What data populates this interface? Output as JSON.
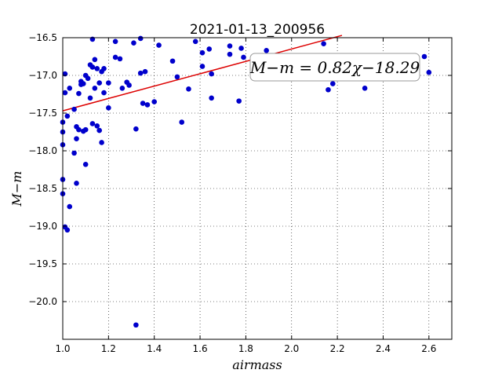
{
  "chart_data": {
    "type": "scatter",
    "title": "2021-01-13_200956",
    "xlabel": "airmass",
    "ylabel": "M−m",
    "xlim": [
      1.0,
      2.7
    ],
    "ylim": [
      -20.5,
      -16.5
    ],
    "y_inverted": true,
    "grid": true,
    "xticks": [
      1.0,
      1.2,
      1.4,
      1.6,
      1.8,
      2.0,
      2.2,
      2.4,
      2.6
    ],
    "xtick_labels": [
      "1.0",
      "1.2",
      "1.4",
      "1.6",
      "1.8",
      "2.0",
      "2.2",
      "2.4",
      "2.6"
    ],
    "yticks": [
      -16.5,
      -17.0,
      -17.5,
      -18.0,
      -18.5,
      -19.0,
      -19.5,
      -20.0
    ],
    "ytick_labels": [
      "−16.5",
      "−17.0",
      "−17.5",
      "−18.0",
      "−18.5",
      "−19.0",
      "−19.5",
      "−20.0"
    ],
    "point_color": "#0000cc",
    "fit_color": "#dd0000",
    "fit": {
      "slope": 0.82,
      "intercept": -18.29,
      "x_start": 1.0,
      "x_end": 2.22
    },
    "annotation": "M−m = 0.82χ−18.29",
    "points": [
      {
        "x": 1.0,
        "y": -17.92
      },
      {
        "x": 1.0,
        "y": -17.75
      },
      {
        "x": 1.0,
        "y": -17.62
      },
      {
        "x": 1.0,
        "y": -18.38
      },
      {
        "x": 1.0,
        "y": -18.57
      },
      {
        "x": 1.01,
        "y": -16.98
      },
      {
        "x": 1.01,
        "y": -17.23
      },
      {
        "x": 1.01,
        "y": -19.01
      },
      {
        "x": 1.02,
        "y": -19.05
      },
      {
        "x": 1.02,
        "y": -17.54
      },
      {
        "x": 1.03,
        "y": -17.17
      },
      {
        "x": 1.03,
        "y": -18.74
      },
      {
        "x": 1.05,
        "y": -17.45
      },
      {
        "x": 1.05,
        "y": -18.03
      },
      {
        "x": 1.06,
        "y": -17.68
      },
      {
        "x": 1.06,
        "y": -17.84
      },
      {
        "x": 1.06,
        "y": -18.43
      },
      {
        "x": 1.07,
        "y": -17.24
      },
      {
        "x": 1.07,
        "y": -17.72
      },
      {
        "x": 1.08,
        "y": -17.12
      },
      {
        "x": 1.08,
        "y": -17.08
      },
      {
        "x": 1.09,
        "y": -17.74
      },
      {
        "x": 1.09,
        "y": -17.11
      },
      {
        "x": 1.1,
        "y": -17.0
      },
      {
        "x": 1.1,
        "y": -17.72
      },
      {
        "x": 1.1,
        "y": -18.18
      },
      {
        "x": 1.11,
        "y": -17.04
      },
      {
        "x": 1.12,
        "y": -17.3
      },
      {
        "x": 1.12,
        "y": -16.86
      },
      {
        "x": 1.13,
        "y": -16.52
      },
      {
        "x": 1.13,
        "y": -16.89
      },
      {
        "x": 1.13,
        "y": -17.64
      },
      {
        "x": 1.14,
        "y": -16.79
      },
      {
        "x": 1.14,
        "y": -17.17
      },
      {
        "x": 1.15,
        "y": -16.91
      },
      {
        "x": 1.15,
        "y": -17.67
      },
      {
        "x": 1.16,
        "y": -17.73
      },
      {
        "x": 1.16,
        "y": -17.1
      },
      {
        "x": 1.17,
        "y": -16.95
      },
      {
        "x": 1.17,
        "y": -17.89
      },
      {
        "x": 1.18,
        "y": -16.91
      },
      {
        "x": 1.18,
        "y": -17.23
      },
      {
        "x": 1.2,
        "y": -17.1
      },
      {
        "x": 1.2,
        "y": -17.43
      },
      {
        "x": 1.23,
        "y": -16.55
      },
      {
        "x": 1.23,
        "y": -16.76
      },
      {
        "x": 1.25,
        "y": -16.78
      },
      {
        "x": 1.26,
        "y": -17.17
      },
      {
        "x": 1.28,
        "y": -17.09
      },
      {
        "x": 1.29,
        "y": -17.13
      },
      {
        "x": 1.31,
        "y": -16.57
      },
      {
        "x": 1.32,
        "y": -17.71
      },
      {
        "x": 1.32,
        "y": -20.31
      },
      {
        "x": 1.34,
        "y": -16.51
      },
      {
        "x": 1.34,
        "y": -16.97
      },
      {
        "x": 1.35,
        "y": -17.37
      },
      {
        "x": 1.36,
        "y": -16.95
      },
      {
        "x": 1.37,
        "y": -17.39
      },
      {
        "x": 1.4,
        "y": -17.35
      },
      {
        "x": 1.42,
        "y": -16.6
      },
      {
        "x": 1.48,
        "y": -16.81
      },
      {
        "x": 1.5,
        "y": -17.02
      },
      {
        "x": 1.52,
        "y": -17.62
      },
      {
        "x": 1.55,
        "y": -17.18
      },
      {
        "x": 1.58,
        "y": -16.55
      },
      {
        "x": 1.61,
        "y": -16.7
      },
      {
        "x": 1.61,
        "y": -16.88
      },
      {
        "x": 1.64,
        "y": -16.65
      },
      {
        "x": 1.65,
        "y": -16.98
      },
      {
        "x": 1.65,
        "y": -17.3
      },
      {
        "x": 1.73,
        "y": -16.61
      },
      {
        "x": 1.73,
        "y": -16.72
      },
      {
        "x": 1.77,
        "y": -17.34
      },
      {
        "x": 1.78,
        "y": -16.64
      },
      {
        "x": 1.79,
        "y": -16.76
      },
      {
        "x": 1.89,
        "y": -16.67
      },
      {
        "x": 2.14,
        "y": -16.58
      },
      {
        "x": 2.16,
        "y": -17.19
      },
      {
        "x": 2.18,
        "y": -17.11
      },
      {
        "x": 2.32,
        "y": -17.17
      },
      {
        "x": 2.58,
        "y": -16.75
      },
      {
        "x": 2.6,
        "y": -16.96
      }
    ]
  }
}
